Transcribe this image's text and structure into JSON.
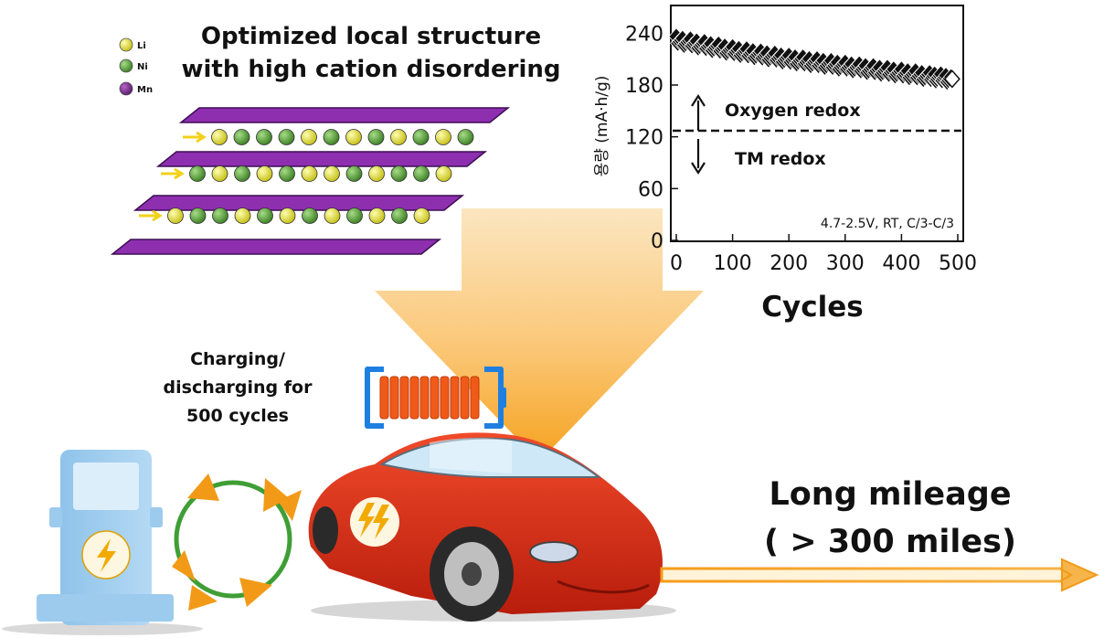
{
  "structure": {
    "title_line1": "Optimized  local structure",
    "title_line2": "with high cation disordering",
    "legend": [
      {
        "label": "Li",
        "color": "#e6e22a"
      },
      {
        "label": "Ni",
        "color": "#5fa83a"
      },
      {
        "label": "Mn",
        "color": "#7a2a8c"
      }
    ]
  },
  "charging_text": [
    "Charging/",
    "discharging for",
    "500 cycles"
  ],
  "mileage_text": [
    "Long mileage",
    "( > 300 miles)"
  ],
  "chart_data": {
    "type": "scatter",
    "ylabel": "용량 (mA·h/g)",
    "xlabel": "Cycles",
    "xlim": [
      0,
      500
    ],
    "ylim": [
      0,
      270
    ],
    "xticks": [
      "0",
      "100",
      "200",
      "300",
      "400",
      "500"
    ],
    "yticks": [
      "0",
      "60",
      "120",
      "180",
      "240"
    ],
    "series": [
      {
        "x": [
          0,
          50,
          100,
          150,
          200,
          250,
          300,
          350,
          400,
          450,
          490
        ],
        "y": [
          232,
          226,
          220,
          215,
          210,
          206,
          202,
          198,
          194,
          190,
          187
        ]
      }
    ],
    "reference_line": {
      "y": 127,
      "style": "dashed"
    },
    "annotations": {
      "upper": "Oxygen redox",
      "lower": "TM redox",
      "conditions": "4.7-2.5V, RT, C/3-C/3"
    }
  }
}
